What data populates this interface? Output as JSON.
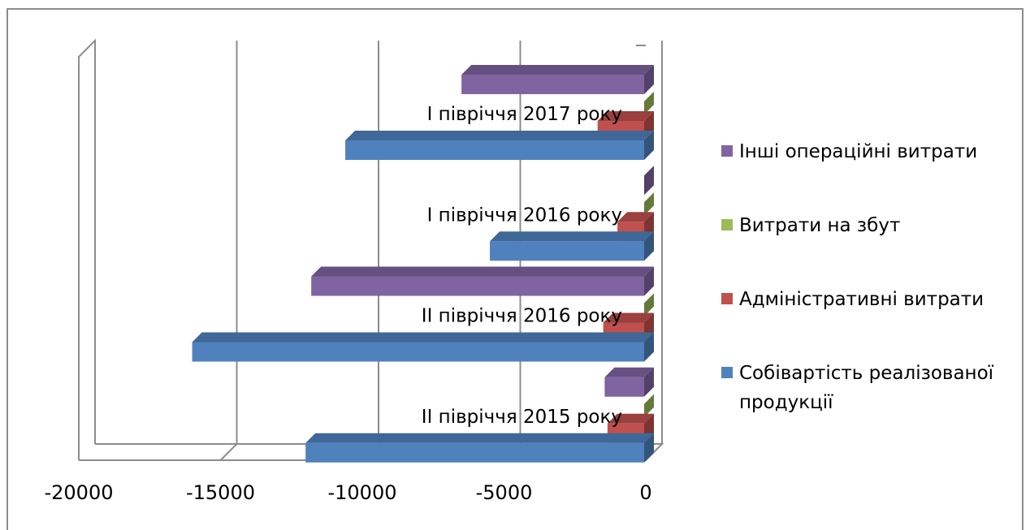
{
  "chart_data": {
    "type": "bar",
    "orientation": "horizontal",
    "style": "3d-clustered",
    "categories": [
      "ІІ півріччя 2015 року",
      "ІІ півріччя 2016 року",
      "І півріччя 2016 року",
      "І півріччя 2017 року"
    ],
    "series": [
      {
        "name": "Собівартість реалізованої продукції",
        "color": "#4f81bd",
        "values": [
          -12000,
          -16000,
          -5500,
          -10600
        ]
      },
      {
        "name": "Адміністративні витрати",
        "color": "#c0504d",
        "values": [
          -1350,
          -1500,
          -1000,
          -1700
        ]
      },
      {
        "name": "Витрати на збут",
        "color": "#9bbb59",
        "values": [
          -50,
          -50,
          -50,
          -50
        ]
      },
      {
        "name": "Інші операційні витрати",
        "color": "#8064a2",
        "values": [
          -1450,
          -11800,
          -50,
          -6500
        ]
      }
    ],
    "xlim": [
      -20000,
      0
    ],
    "xticks": [
      "-20000",
      "-15000",
      "-10000",
      "-5000",
      "0"
    ],
    "grid": true,
    "legend": "right"
  }
}
